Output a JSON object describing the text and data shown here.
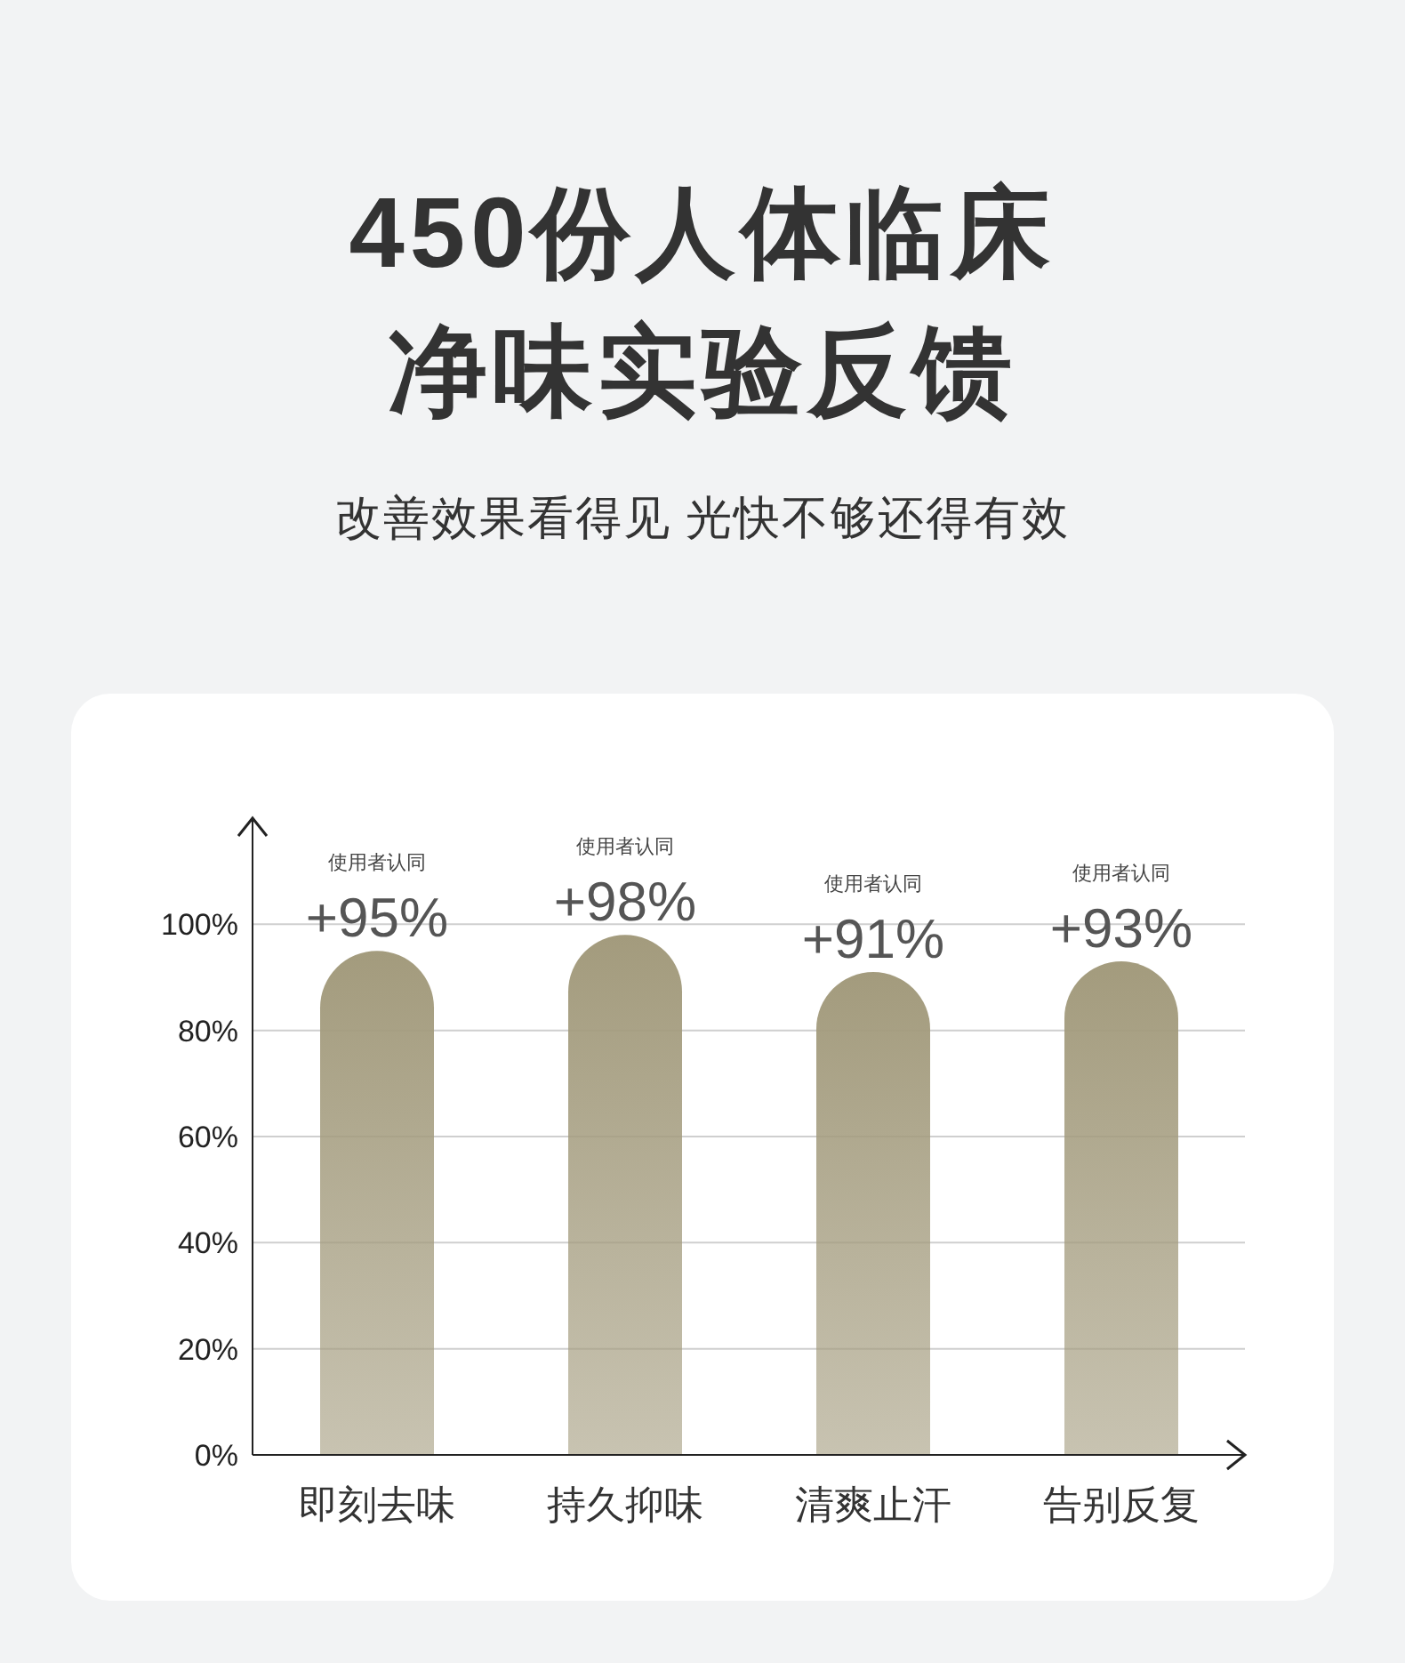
{
  "chart_data": {
    "type": "bar",
    "title": "450份人体临床净味实验反馈",
    "subtitle": "改善效果看得见 光快不够还得有效",
    "categories": [
      "即刻去味",
      "持久抑味",
      "清爽止汗",
      "告别反复"
    ],
    "values": [
      95,
      98,
      91,
      93
    ],
    "color": "#a39b7d",
    "value_labels": [
      "+95%",
      "+98%",
      "+91%",
      "+93%"
    ],
    "ylim": [
      0,
      120
    ],
    "yticks": [
      {
        "value": 0,
        "label": "0%"
      },
      {
        "value": 20,
        "label": "20%"
      },
      {
        "value": 40,
        "label": "40%"
      },
      {
        "value": 60,
        "label": "60%"
      },
      {
        "value": 80,
        "label": "80%"
      },
      {
        "value": 100,
        "label": "100%"
      }
    ],
    "grid": "y",
    "annotations": [
      "使用者认同",
      "使用者认同",
      "使用者认同",
      "使用者认同"
    ]
  }
}
